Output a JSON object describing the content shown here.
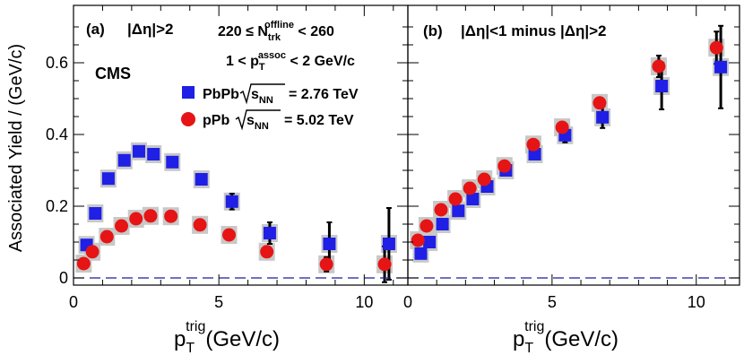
{
  "figure": {
    "ylabel": "Associated Yield / (GeV/c)",
    "xlabel_main": "p",
    "xlabel_sub": "T",
    "xlabel_sup": "trig",
    "xlabel_unit": "(GeV/c)"
  },
  "legend": {
    "experiment": "CMS",
    "ntrk_range": "220 ≤ N",
    "ntrk_sub": "trk",
    "ntrk_sup": "offline",
    "ntrk_upper": " < 260",
    "pt_lower": "1 < p",
    "pt_sub": "T",
    "pt_sup": "assoc",
    "pt_upper": " < 2 GeV/c",
    "pbpb_label": "PbPb",
    "pbpb_energy": "= 2.76 TeV",
    "ppb_label": "pPb",
    "ppb_energy": "= 5.02 TeV",
    "snn_letter": "s",
    "snn_sub": "NN"
  },
  "colors": {
    "pbpb": "#1f1fe6",
    "ppb": "#e61414",
    "syst": "#c8c8c8",
    "zero_line": "#1a1a99"
  },
  "chart_data": [
    {
      "type": "scatter",
      "panel_label": "(a)",
      "title": "|Δη|>2",
      "xlim": [
        0,
        11.5
      ],
      "ylim": [
        -0.02,
        0.76
      ],
      "xticks": [
        0,
        5,
        10
      ],
      "yticks": [
        0,
        0.2,
        0.4,
        0.6
      ],
      "xtick_labels": [
        "0",
        "5",
        "10"
      ],
      "ytick_labels": [
        "0",
        "0.2",
        "0.4",
        "0.6"
      ],
      "series": [
        {
          "name": "PbPb √sNN = 2.76 TeV",
          "marker": "square",
          "x": [
            0.45,
            0.75,
            1.2,
            1.75,
            2.25,
            2.75,
            3.4,
            4.4,
            5.45,
            6.75,
            8.8,
            10.85
          ],
          "y": [
            0.092,
            0.18,
            0.277,
            0.328,
            0.353,
            0.345,
            0.323,
            0.275,
            0.213,
            0.125,
            0.095,
            0.095
          ],
          "stat_err": [
            0.004,
            0.004,
            0.004,
            0.004,
            0.004,
            0.005,
            0.005,
            0.008,
            0.022,
            0.03,
            0.06,
            0.1
          ]
        },
        {
          "name": "pPb √sNN = 5.02 TeV",
          "marker": "circle",
          "x": [
            0.35,
            0.65,
            1.15,
            1.65,
            2.15,
            2.65,
            3.35,
            4.35,
            5.35,
            6.65,
            8.7,
            10.7
          ],
          "y": [
            0.04,
            0.073,
            0.115,
            0.145,
            0.165,
            0.173,
            0.172,
            0.148,
            0.12,
            0.073,
            0.038,
            0.038
          ],
          "stat_err": [
            0.002,
            0.002,
            0.002,
            0.002,
            0.002,
            0.002,
            0.003,
            0.004,
            0.006,
            0.01,
            0.02,
            0.05
          ]
        }
      ]
    },
    {
      "type": "scatter",
      "panel_label": "(b)",
      "title": "|Δη|<1 minus |Δη|>2",
      "xlim": [
        0,
        11.5
      ],
      "ylim": [
        -0.02,
        0.76
      ],
      "xticks": [
        0,
        5,
        10
      ],
      "yticks": [
        0,
        0.2,
        0.4,
        0.6
      ],
      "xtick_labels": [
        "0",
        "5",
        "10"
      ],
      "ytick_labels": [
        "0",
        "0.2",
        "0.4",
        "0.6"
      ],
      "series": [
        {
          "name": "PbPb √sNN = 2.76 TeV",
          "marker": "square",
          "x": [
            0.45,
            0.75,
            1.2,
            1.75,
            2.25,
            2.75,
            3.4,
            4.4,
            5.45,
            6.75,
            8.8,
            10.85
          ],
          "y": [
            0.068,
            0.1,
            0.15,
            0.187,
            0.22,
            0.255,
            0.3,
            0.345,
            0.398,
            0.448,
            0.535,
            0.588
          ],
          "stat_err": [
            0.004,
            0.004,
            0.004,
            0.004,
            0.004,
            0.005,
            0.006,
            0.01,
            0.02,
            0.03,
            0.065,
            0.115
          ]
        },
        {
          "name": "pPb √sNN = 5.02 TeV",
          "marker": "circle",
          "x": [
            0.35,
            0.65,
            1.15,
            1.65,
            2.15,
            2.65,
            3.35,
            4.35,
            5.35,
            6.65,
            8.7,
            10.7
          ],
          "y": [
            0.105,
            0.145,
            0.19,
            0.22,
            0.25,
            0.275,
            0.312,
            0.372,
            0.42,
            0.488,
            0.59,
            0.642
          ],
          "stat_err": [
            0.002,
            0.002,
            0.003,
            0.003,
            0.003,
            0.004,
            0.005,
            0.006,
            0.01,
            0.015,
            0.03,
            0.045
          ]
        }
      ]
    }
  ]
}
